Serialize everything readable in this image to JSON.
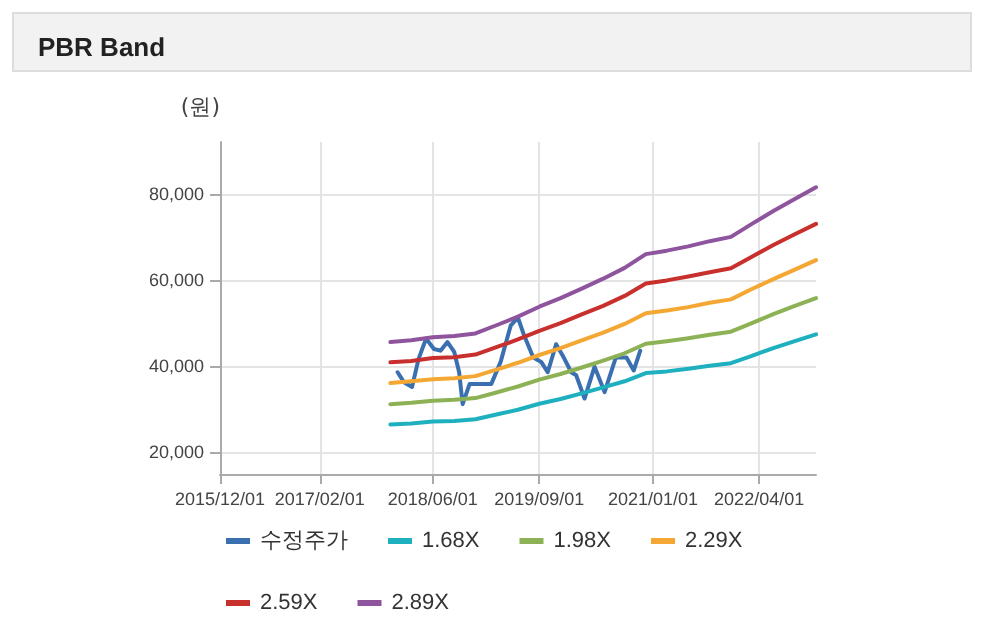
{
  "chart_data": {
    "type": "line",
    "title": "PBR Band",
    "ylabel": "(원)",
    "xlim": [
      "2015-12-01",
      "2022-12-01"
    ],
    "xticks": [
      {
        "value": "2015-12-01",
        "label": "2015/12/01"
      },
      {
        "value": "2017-02-01",
        "label": "2017/02/01"
      },
      {
        "value": "2018-06-01",
        "label": "2018/06/01"
      },
      {
        "value": "2019-09-01",
        "label": "2019/09/01"
      },
      {
        "value": "2021-01-01",
        "label": "2021/01/01"
      },
      {
        "value": "2022-04-01",
        "label": "2022/04/01"
      }
    ],
    "ylim": [
      15000,
      92000
    ],
    "yticks": [
      {
        "value": 20000,
        "label": "20,000"
      },
      {
        "value": 40000,
        "label": "40,000"
      },
      {
        "value": 60000,
        "label": "60,000"
      },
      {
        "value": 80000,
        "label": "80,000"
      }
    ],
    "x": [
      "2017-12-01",
      "2018-03-01",
      "2018-06-01",
      "2018-09-01",
      "2018-12-01",
      "2019-03-01",
      "2019-06-01",
      "2019-09-01",
      "2019-12-01",
      "2020-03-01",
      "2020-06-01",
      "2020-09-01",
      "2020-12-01",
      "2021-03-01",
      "2021-06-01",
      "2021-09-01",
      "2021-12-01",
      "2022-03-01",
      "2022-06-01",
      "2022-09-01",
      "2022-12-01"
    ],
    "series": [
      {
        "name": "수정주가",
        "color": "#3a6fb0",
        "x": [
          "2018-01-01",
          "2018-01-28",
          "2018-03-04",
          "2018-04-01",
          "2018-05-03",
          "2018-06-06",
          "2018-07-04",
          "2018-08-03",
          "2018-09-01",
          "2018-09-22",
          "2018-10-07",
          "2018-11-06",
          "2018-12-25",
          "2019-02-07",
          "2019-03-19",
          "2019-05-01",
          "2019-06-01",
          "2019-06-28",
          "2019-08-06",
          "2019-09-09",
          "2019-10-07",
          "2019-11-12",
          "2019-12-10",
          "2020-01-16",
          "2020-02-06",
          "2020-03-13",
          "2020-04-25",
          "2020-06-07",
          "2020-07-25",
          "2020-09-09",
          "2020-10-10",
          "2020-11-07"
        ],
        "values": [
          38600,
          36300,
          35200,
          41700,
          46400,
          44000,
          43600,
          45600,
          43300,
          38600,
          31200,
          35900,
          35900,
          35900,
          41000,
          49400,
          51300,
          47100,
          42000,
          41000,
          38600,
          45100,
          42500,
          38600,
          37900,
          32500,
          39900,
          34000,
          42000,
          42000,
          39000,
          43600
        ]
      },
      {
        "name": "1.68X",
        "color": "#1fb0c0",
        "values": [
          26500,
          26700,
          27200,
          27300,
          27700,
          28800,
          29900,
          31300,
          32400,
          33700,
          35100,
          36500,
          38400,
          38800,
          39400,
          40100,
          40700,
          42400,
          44200,
          45800,
          47400
        ]
      },
      {
        "name": "1.98X",
        "color": "#8db255",
        "values": [
          31200,
          31500,
          32000,
          32200,
          32600,
          33900,
          35300,
          36900,
          38200,
          39700,
          41300,
          43000,
          45200,
          45800,
          46500,
          47300,
          48000,
          50000,
          52100,
          54000,
          55800
        ]
      },
      {
        "name": "2.29X",
        "color": "#f5a733",
        "values": [
          36100,
          36500,
          37000,
          37200,
          37700,
          39200,
          40800,
          42600,
          44200,
          46000,
          47800,
          49800,
          52300,
          52900,
          53700,
          54700,
          55500,
          57900,
          60200,
          62400,
          64600
        ]
      },
      {
        "name": "2.59X",
        "color": "#c8302e",
        "values": [
          40900,
          41200,
          41900,
          42100,
          42700,
          44400,
          46200,
          48200,
          50000,
          52000,
          54000,
          56300,
          59200,
          59900,
          60800,
          61800,
          62700,
          65400,
          68100,
          70600,
          73000
        ]
      },
      {
        "name": "2.89X",
        "color": "#8e559e",
        "values": [
          45600,
          46000,
          46700,
          47000,
          47600,
          49500,
          51500,
          53800,
          55800,
          58000,
          60300,
          62800,
          66000,
          66800,
          67800,
          69000,
          70000,
          73000,
          76000,
          78800,
          81500
        ]
      }
    ],
    "grid": true,
    "legend": "bottom left",
    "marker": "none",
    "line_style": "solid"
  }
}
